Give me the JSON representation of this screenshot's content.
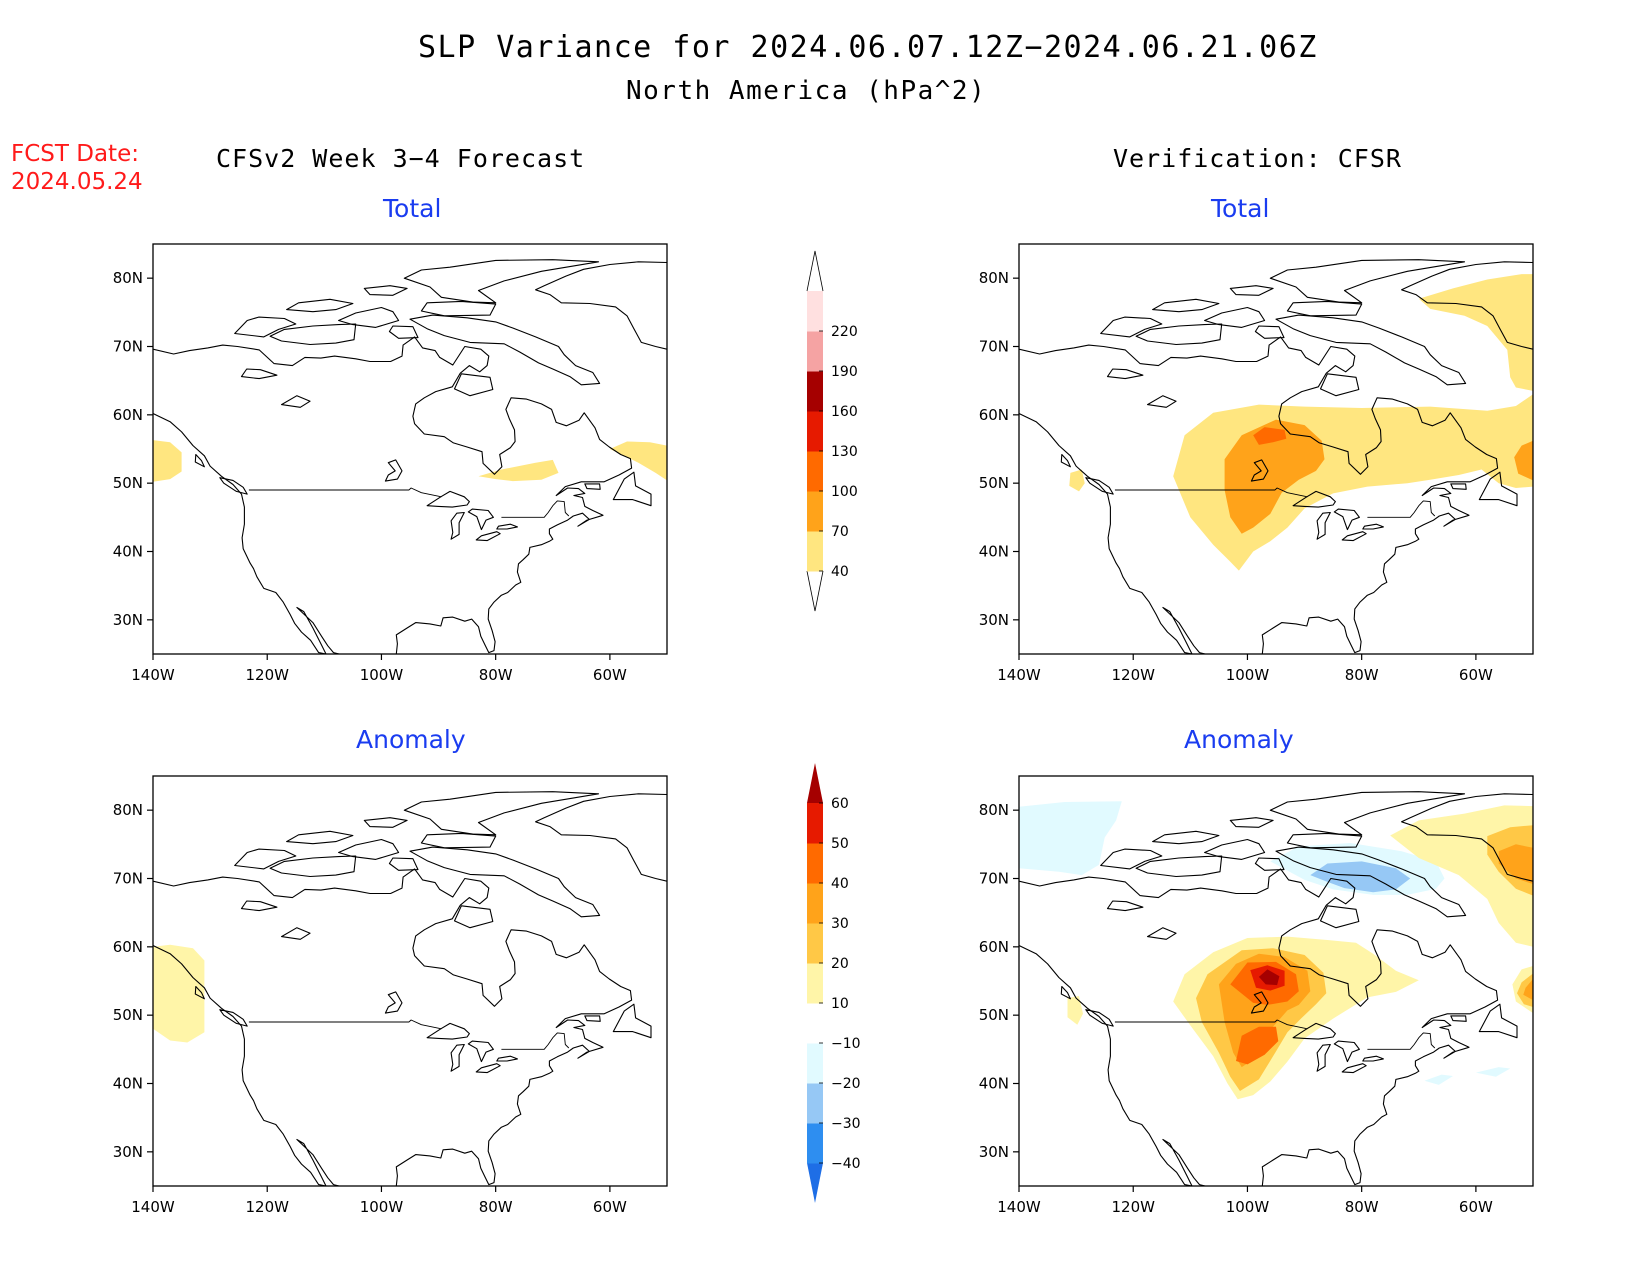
{
  "title": {
    "line1": "SLP Variance for 2024.06.07.12Z−2024.06.21.06Z",
    "line2": "North America (hPa^2)"
  },
  "forecast_date": {
    "label": "FCST Date:",
    "value": "2024.05.24"
  },
  "columns": {
    "left": "CFSv2 Week 3−4 Forecast",
    "right": "Verification: CFSR"
  },
  "panels": [
    {
      "id": "fcst-total",
      "label": "Total"
    },
    {
      "id": "verif-total",
      "label": "Total"
    },
    {
      "id": "fcst-anomaly",
      "label": "Anomaly"
    },
    {
      "id": "verif-anomaly",
      "label": "Anomaly"
    }
  ],
  "axes": {
    "x_ticks": [
      "140W",
      "120W",
      "100W",
      "80W",
      "60W"
    ],
    "y_ticks": [
      "80N",
      "70N",
      "60N",
      "50N",
      "40N",
      "30N"
    ]
  },
  "colorbars": {
    "total": {
      "levels": [
        "40",
        "70",
        "100",
        "130",
        "160",
        "190",
        "220"
      ],
      "colors": [
        "#ffe680",
        "#ffa31a",
        "#ff6a00",
        "#e61a00",
        "#a50000",
        "#f5a3a3",
        "#ffe0e0"
      ]
    },
    "anomaly": {
      "levels": [
        "−40",
        "−30",
        "−20",
        "−10",
        "10",
        "20",
        "30",
        "40",
        "50",
        "60"
      ],
      "colors": [
        "#1e6ee6",
        "#2e8ef0",
        "#96c8f5",
        "#e1faff",
        "#ffffff",
        "#fff5a8",
        "#ffc846",
        "#ffa31a",
        "#ff6a00",
        "#e61a00",
        "#a50000"
      ]
    }
  }
}
